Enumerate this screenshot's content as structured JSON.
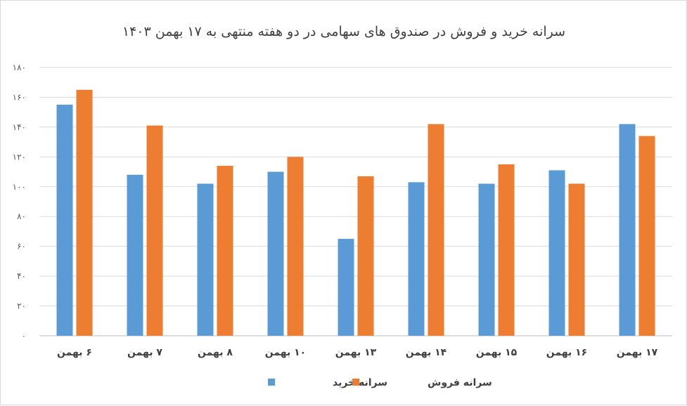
{
  "chart_data": {
    "type": "bar",
    "title": "سرانه خرید و فروش در صندوق های سهامی در دو هفته منتهی به ۱۷ بهمن ۱۴۰۳",
    "xlabel": "",
    "ylabel": "",
    "ylim": [
      0,
      180
    ],
    "yticks": [
      0,
      20,
      40,
      60,
      80,
      100,
      120,
      140,
      160,
      180
    ],
    "ytick_labels": [
      "۰",
      "۲۰",
      "۴۰",
      "۶۰",
      "۸۰",
      "۱۰۰",
      "۱۲۰",
      "۱۴۰",
      "۱۶۰",
      "۱۸۰"
    ],
    "categories": [
      "۶ بهمن",
      "۷ بهمن",
      "۸ بهمن",
      "۱۰ بهمن",
      "۱۳ بهمن",
      "۱۴ بهمن",
      "۱۵ بهمن",
      "۱۶ بهمن",
      "۱۷ بهمن"
    ],
    "series": [
      {
        "name": "سرانه خرید",
        "color": "#5b9bd5",
        "values": [
          155,
          108,
          102,
          110,
          65,
          103,
          102,
          111,
          142
        ]
      },
      {
        "name": "سرانه فروش",
        "color": "#ed7d31",
        "values": [
          165,
          141,
          114,
          120,
          107,
          142,
          115,
          102,
          134
        ]
      }
    ],
    "grid": true,
    "legend_position": "bottom"
  }
}
